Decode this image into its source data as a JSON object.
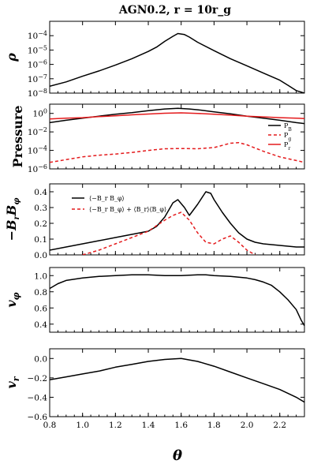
{
  "title": "AGN0.2,  r = 10r_g",
  "xlabel": "θ",
  "x_ticks": [
    "0.8",
    "1.0",
    "1.2",
    "1.4",
    "1.6",
    "1.8",
    "2.0",
    "2.2"
  ],
  "colors": {
    "black": "#000000",
    "red": "#e41a1c"
  },
  "chart_data": [
    {
      "type": "line",
      "ylabel": "ρ",
      "yscale": "log",
      "xlim": [
        0.8,
        2.35
      ],
      "ylim": [
        1e-08,
        0.001
      ],
      "y_ticks": [
        "10^-8",
        "10^-7",
        "10^-6",
        "10^-5",
        "10^-4"
      ],
      "series": [
        {
          "style": "black-solid",
          "x": [
            0.8,
            0.9,
            1.0,
            1.1,
            1.2,
            1.3,
            1.4,
            1.45,
            1.5,
            1.55,
            1.58,
            1.62,
            1.65,
            1.7,
            1.8,
            1.9,
            2.0,
            2.1,
            2.2,
            2.25,
            2.3,
            2.35
          ],
          "y": [
            3e-08,
            6e-08,
            1.5e-07,
            3.5e-07,
            9e-07,
            2.5e-06,
            8e-06,
            1.6e-05,
            4e-05,
            9e-05,
            0.00014,
            0.00012,
            8e-05,
            3.5e-05,
            9e-06,
            2.5e-06,
            8e-07,
            2.5e-07,
            8e-08,
            3.5e-08,
            1.5e-08,
            1e-08
          ]
        }
      ]
    },
    {
      "type": "line",
      "ylabel": "Pressure",
      "yscale": "log",
      "xlim": [
        0.8,
        2.35
      ],
      "ylim": [
        1e-06,
        10
      ],
      "y_ticks": [
        "10^-6",
        "10^-4",
        "10^-2",
        "10^0"
      ],
      "legend_position": "right",
      "series": [
        {
          "name": "P_B",
          "style": "black-solid",
          "x": [
            0.8,
            0.9,
            1.0,
            1.1,
            1.2,
            1.3,
            1.4,
            1.5,
            1.58,
            1.65,
            1.7,
            1.8,
            1.9,
            2.0,
            2.1,
            2.2,
            2.3,
            2.35
          ],
          "y": [
            0.1,
            0.18,
            0.3,
            0.5,
            0.8,
            1.2,
            2,
            3,
            3.5,
            3,
            2.5,
            1.5,
            0.9,
            0.5,
            0.3,
            0.18,
            0.1,
            0.08
          ]
        },
        {
          "name": "P_g",
          "style": "red-dashed",
          "x": [
            0.8,
            0.9,
            1.0,
            1.1,
            1.2,
            1.3,
            1.4,
            1.5,
            1.6,
            1.7,
            1.8,
            1.9,
            1.95,
            2.0,
            2.1,
            2.2,
            2.3,
            2.35
          ],
          "y": [
            5e-06,
            1e-05,
            2e-05,
            3e-05,
            4e-05,
            6e-05,
            0.0001,
            0.00015,
            0.00016,
            0.00015,
            0.0002,
            0.0006,
            0.0007,
            0.0004,
            8e-05,
            2e-05,
            8e-06,
            5e-06
          ]
        },
        {
          "name": "P_r",
          "style": "red-solid",
          "x": [
            0.8,
            0.9,
            1.0,
            1.1,
            1.2,
            1.3,
            1.4,
            1.5,
            1.6,
            1.7,
            1.8,
            1.9,
            2.0,
            2.1,
            2.2,
            2.3,
            2.35
          ],
          "y": [
            0.25,
            0.3,
            0.35,
            0.45,
            0.55,
            0.7,
            0.85,
            1.05,
            1.15,
            1.0,
            0.8,
            0.65,
            0.5,
            0.42,
            0.35,
            0.3,
            0.28
          ]
        }
      ]
    },
    {
      "type": "line",
      "ylabel": "−B_r B_φ",
      "yscale": "linear",
      "xlim": [
        0.8,
        2.35
      ],
      "ylim": [
        0,
        0.45
      ],
      "y_ticks": [
        "0.0",
        "0.1",
        "0.2",
        "0.3",
        "0.4"
      ],
      "legend_position": "top-left",
      "series": [
        {
          "name": "⟨−B_r B_φ⟩",
          "style": "black-solid",
          "x": [
            0.8,
            0.9,
            1.0,
            1.1,
            1.2,
            1.3,
            1.4,
            1.45,
            1.5,
            1.55,
            1.58,
            1.62,
            1.65,
            1.7,
            1.75,
            1.78,
            1.8,
            1.85,
            1.9,
            1.95,
            2.0,
            2.05,
            2.1,
            2.2,
            2.3,
            2.35
          ],
          "y": [
            0.03,
            0.05,
            0.07,
            0.09,
            0.11,
            0.13,
            0.15,
            0.18,
            0.24,
            0.33,
            0.35,
            0.3,
            0.25,
            0.32,
            0.4,
            0.39,
            0.35,
            0.27,
            0.2,
            0.14,
            0.1,
            0.08,
            0.07,
            0.06,
            0.05,
            0.05
          ]
        },
        {
          "name": "⟨−B_r B_φ⟩ + ⟨B_r⟩⟨B_φ⟩",
          "style": "red-dashed",
          "x": [
            1.0,
            1.1,
            1.2,
            1.3,
            1.4,
            1.5,
            1.55,
            1.6,
            1.65,
            1.7,
            1.75,
            1.8,
            1.85,
            1.9,
            1.95,
            2.0,
            2.05
          ],
          "y": [
            0.0,
            0.03,
            0.07,
            0.11,
            0.15,
            0.22,
            0.25,
            0.27,
            0.22,
            0.14,
            0.08,
            0.07,
            0.1,
            0.12,
            0.08,
            0.03,
            0.0
          ]
        }
      ]
    },
    {
      "type": "line",
      "ylabel": "v_φ",
      "yscale": "linear",
      "xlim": [
        0.8,
        2.35
      ],
      "ylim": [
        0.3,
        1.1
      ],
      "y_ticks": [
        "0.4",
        "0.6",
        "0.8",
        "1.0"
      ],
      "series": [
        {
          "style": "black-solid",
          "x": [
            0.8,
            0.85,
            0.9,
            1.0,
            1.1,
            1.2,
            1.3,
            1.4,
            1.5,
            1.6,
            1.7,
            1.75,
            1.8,
            1.9,
            2.0,
            2.05,
            2.1,
            2.15,
            2.2,
            2.25,
            2.3,
            2.33,
            2.35
          ],
          "y": [
            0.84,
            0.9,
            0.94,
            0.97,
            0.99,
            1.0,
            1.01,
            1.01,
            1.0,
            1.0,
            1.01,
            1.01,
            1.0,
            0.99,
            0.97,
            0.95,
            0.92,
            0.88,
            0.8,
            0.7,
            0.58,
            0.45,
            0.38
          ]
        }
      ]
    },
    {
      "type": "line",
      "ylabel": "v_r",
      "yscale": "linear",
      "xlim": [
        0.8,
        2.35
      ],
      "ylim": [
        -0.6,
        0.1
      ],
      "y_ticks": [
        "−0.6",
        "−0.4",
        "−0.2",
        "0.0"
      ],
      "series": [
        {
          "style": "black-solid",
          "x": [
            0.8,
            0.9,
            1.0,
            1.1,
            1.2,
            1.3,
            1.4,
            1.5,
            1.6,
            1.7,
            1.8,
            1.9,
            2.0,
            2.1,
            2.2,
            2.3,
            2.35
          ],
          "y": [
            -0.22,
            -0.19,
            -0.16,
            -0.13,
            -0.09,
            -0.06,
            -0.03,
            -0.01,
            0.0,
            -0.03,
            -0.08,
            -0.14,
            -0.2,
            -0.26,
            -0.32,
            -0.4,
            -0.45
          ]
        }
      ]
    }
  ]
}
